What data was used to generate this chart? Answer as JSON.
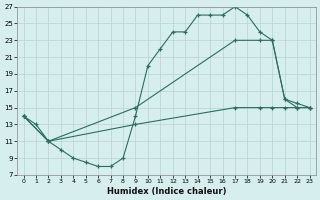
{
  "xlabel": "Humidex (Indice chaleur)",
  "bg_color": "#d6eeee",
  "line_color": "#2a6e62",
  "grid_color": "#b8d4d4",
  "xlim": [
    -0.5,
    23.5
  ],
  "ylim": [
    7,
    27
  ],
  "xticks": [
    0,
    1,
    2,
    3,
    4,
    5,
    6,
    7,
    8,
    9,
    10,
    11,
    12,
    13,
    14,
    15,
    16,
    17,
    18,
    19,
    20,
    21,
    22,
    23
  ],
  "yticks": [
    7,
    9,
    11,
    13,
    15,
    17,
    19,
    21,
    23,
    25,
    27
  ],
  "line1_x": [
    0,
    1,
    2,
    3,
    4,
    5,
    6,
    7,
    8,
    9,
    10,
    11,
    12,
    13,
    14,
    15,
    16,
    17,
    18,
    19,
    20,
    21,
    22,
    23
  ],
  "line1_y": [
    14,
    13,
    11,
    10,
    9,
    8.5,
    8,
    8,
    9,
    14,
    20,
    22,
    24,
    24,
    26,
    26,
    26,
    27,
    26,
    24,
    23,
    16,
    15,
    15
  ],
  "line2_x": [
    0,
    2,
    9,
    17,
    19,
    20,
    21,
    22,
    23
  ],
  "line2_y": [
    14,
    11,
    15,
    23,
    23,
    23,
    16,
    15.5,
    15
  ],
  "line3_x": [
    0,
    2,
    9,
    17,
    19,
    20,
    21,
    22,
    23
  ],
  "line3_y": [
    14,
    11,
    13,
    15,
    15,
    15,
    15,
    15,
    15
  ]
}
